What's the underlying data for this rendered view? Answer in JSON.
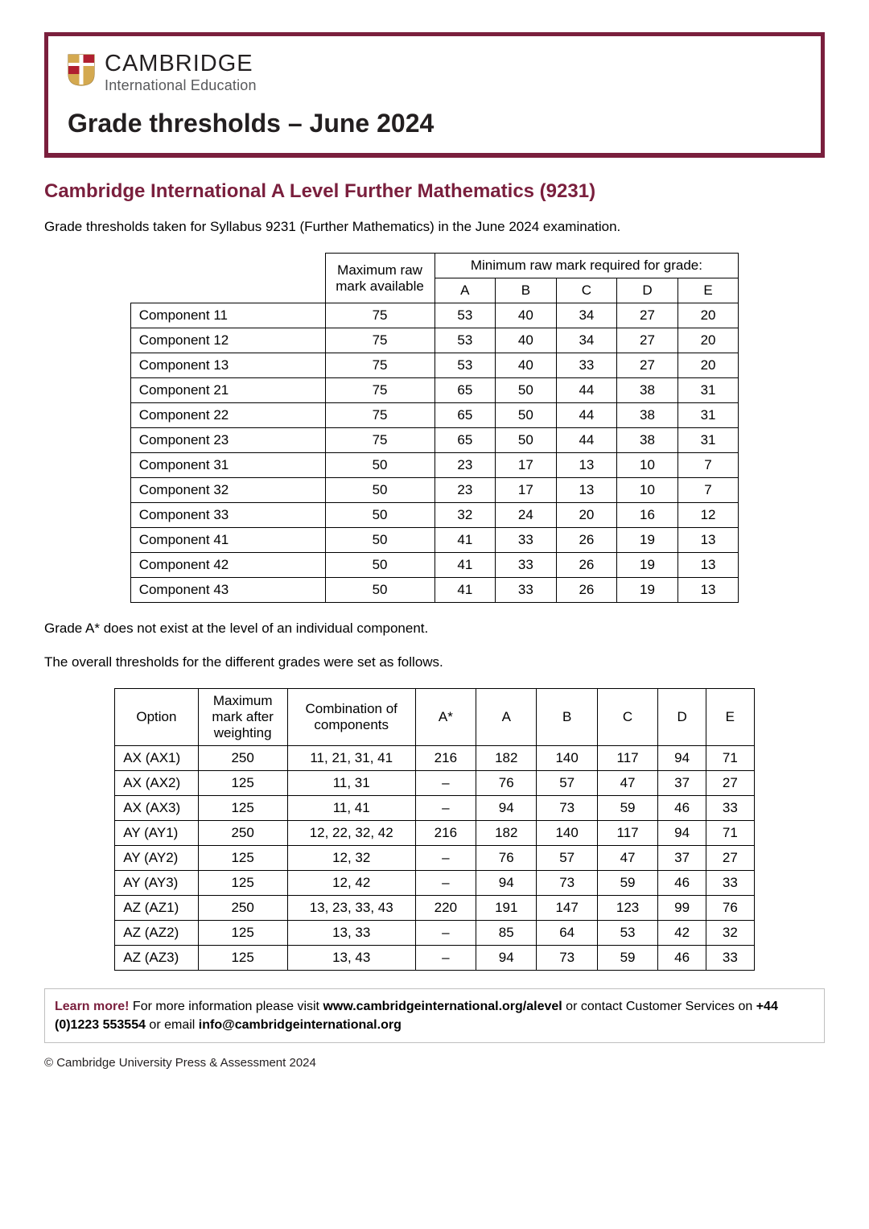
{
  "colors": {
    "brand_border": "#7a1f3d",
    "heading": "#7a1f3d",
    "text": "#000000",
    "logo_text": "#231f20",
    "logo_sub": "#58595b",
    "info_border": "#bfbfbf",
    "table_border": "#000000",
    "bg": "#ffffff"
  },
  "logo": {
    "main": "CAMBRIDGE",
    "sub": "International Education"
  },
  "page_title": "Grade thresholds – June 2024",
  "section_title": "Cambridge International A Level Further Mathematics (9231)",
  "intro": "Grade thresholds taken for Syllabus 9231 (Further Mathematics) in the June 2024 examination.",
  "table1": {
    "super_header": "Minimum raw mark required for grade:",
    "col_max": "Maximum raw mark available",
    "grades": [
      "A",
      "B",
      "C",
      "D",
      "E"
    ],
    "rows": [
      {
        "name": "Component 11",
        "max": "75",
        "vals": [
          "53",
          "40",
          "34",
          "27",
          "20"
        ]
      },
      {
        "name": "Component 12",
        "max": "75",
        "vals": [
          "53",
          "40",
          "34",
          "27",
          "20"
        ]
      },
      {
        "name": "Component 13",
        "max": "75",
        "vals": [
          "53",
          "40",
          "33",
          "27",
          "20"
        ]
      },
      {
        "name": "Component 21",
        "max": "75",
        "vals": [
          "65",
          "50",
          "44",
          "38",
          "31"
        ]
      },
      {
        "name": "Component 22",
        "max": "75",
        "vals": [
          "65",
          "50",
          "44",
          "38",
          "31"
        ]
      },
      {
        "name": "Component 23",
        "max": "75",
        "vals": [
          "65",
          "50",
          "44",
          "38",
          "31"
        ]
      },
      {
        "name": "Component 31",
        "max": "50",
        "vals": [
          "23",
          "17",
          "13",
          "10",
          "7"
        ]
      },
      {
        "name": "Component 32",
        "max": "50",
        "vals": [
          "23",
          "17",
          "13",
          "10",
          "7"
        ]
      },
      {
        "name": "Component 33",
        "max": "50",
        "vals": [
          "32",
          "24",
          "20",
          "16",
          "12"
        ]
      },
      {
        "name": "Component 41",
        "max": "50",
        "vals": [
          "41",
          "33",
          "26",
          "19",
          "13"
        ]
      },
      {
        "name": "Component 42",
        "max": "50",
        "vals": [
          "41",
          "33",
          "26",
          "19",
          "13"
        ]
      },
      {
        "name": "Component 43",
        "max": "50",
        "vals": [
          "41",
          "33",
          "26",
          "19",
          "13"
        ]
      }
    ]
  },
  "note1": "Grade A* does not exist at the level of an individual component.",
  "note2": "The overall thresholds for the different grades were set as follows.",
  "table2": {
    "col_option": "Option",
    "col_max": "Maximum mark after weighting",
    "col_combo": "Combination of components",
    "grades": [
      "A*",
      "A",
      "B",
      "C",
      "D",
      "E"
    ],
    "rows": [
      {
        "opt": "AX (AX1)",
        "max": "250",
        "combo": "11, 21, 31, 41",
        "vals": [
          "216",
          "182",
          "140",
          "117",
          "94",
          "71"
        ]
      },
      {
        "opt": "AX (AX2)",
        "max": "125",
        "combo": "11, 31",
        "vals": [
          "–",
          "76",
          "57",
          "47",
          "37",
          "27"
        ]
      },
      {
        "opt": "AX (AX3)",
        "max": "125",
        "combo": "11, 41",
        "vals": [
          "–",
          "94",
          "73",
          "59",
          "46",
          "33"
        ]
      },
      {
        "opt": "AY (AY1)",
        "max": "250",
        "combo": "12, 22, 32, 42",
        "vals": [
          "216",
          "182",
          "140",
          "117",
          "94",
          "71"
        ]
      },
      {
        "opt": "AY (AY2)",
        "max": "125",
        "combo": "12, 32",
        "vals": [
          "–",
          "76",
          "57",
          "47",
          "37",
          "27"
        ]
      },
      {
        "opt": "AY (AY3)",
        "max": "125",
        "combo": "12, 42",
        "vals": [
          "–",
          "94",
          "73",
          "59",
          "46",
          "33"
        ]
      },
      {
        "opt": "AZ (AZ1)",
        "max": "250",
        "combo": "13, 23, 33, 43",
        "vals": [
          "220",
          "191",
          "147",
          "123",
          "99",
          "76"
        ]
      },
      {
        "opt": "AZ (AZ2)",
        "max": "125",
        "combo": "13, 33",
        "vals": [
          "–",
          "85",
          "64",
          "53",
          "42",
          "32"
        ]
      },
      {
        "opt": "AZ (AZ3)",
        "max": "125",
        "combo": "13, 43",
        "vals": [
          "–",
          "94",
          "73",
          "59",
          "46",
          "33"
        ]
      }
    ]
  },
  "learn": {
    "lead": "Learn more!",
    "text1": " For more information please visit ",
    "link": "www.cambridgeinternational.org/alevel",
    "text2": " or contact Customer Services on ",
    "phone": "+44 (0)1223 553554",
    "text3": " or email ",
    "email": "info@cambridgeinternational.org"
  },
  "copyright": "© Cambridge University Press & Assessment 2024"
}
